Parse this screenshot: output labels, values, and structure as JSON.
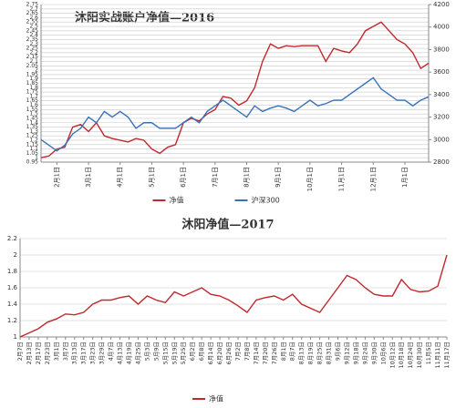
{
  "chart_data": [
    {
      "type": "line",
      "title": "沐阳实战账户净值—2016",
      "categories": [
        null,
        null,
        "2月1日",
        null,
        null,
        null,
        "3月1日",
        null,
        null,
        null,
        "4月1日",
        null,
        null,
        null,
        "5月1日",
        null,
        null,
        null,
        "6月1日",
        null,
        null,
        null,
        "7月1日",
        null,
        null,
        null,
        "8月1日",
        null,
        null,
        null,
        "9月1日",
        null,
        null,
        null,
        "10月1日",
        null,
        null,
        null,
        "11月1日",
        null,
        null,
        null,
        "12月1日",
        null,
        null,
        null,
        "1月1日",
        null,
        null,
        null
      ],
      "series": [
        {
          "name": "净值",
          "color": "#c0282d",
          "values": [
            1.0,
            1.02,
            1.1,
            1.12,
            1.35,
            1.38,
            1.3,
            1.4,
            1.25,
            1.22,
            1.2,
            1.18,
            1.22,
            1.2,
            1.1,
            1.05,
            1.12,
            1.15,
            1.4,
            1.45,
            1.42,
            1.5,
            1.55,
            1.7,
            1.68,
            1.6,
            1.65,
            1.8,
            2.1,
            2.3,
            2.25,
            2.28,
            2.27,
            2.28,
            2.28,
            2.28,
            2.1,
            2.25,
            2.22,
            2.2,
            2.3,
            2.45,
            2.5,
            2.55,
            2.45,
            2.35,
            2.3,
            2.2,
            2.02,
            2.08
          ]
        },
        {
          "name": "沪深300",
          "color": "#3a72b8",
          "axis": "y2",
          "values": [
            3000,
            2950,
            2900,
            2950,
            3050,
            3100,
            3200,
            3150,
            3250,
            3200,
            3250,
            3200,
            3100,
            3150,
            3150,
            3100,
            3100,
            3100,
            3150,
            3200,
            3150,
            3250,
            3300,
            3350,
            3300,
            3250,
            3200,
            3300,
            3250,
            3280,
            3300,
            3280,
            3250,
            3300,
            3350,
            3300,
            3320,
            3350,
            3350,
            3400,
            3450,
            3500,
            3550,
            3450,
            3400,
            3350,
            3350,
            3300,
            3350,
            3380
          ]
        }
      ],
      "ylim": [
        0.95,
        2.75
      ],
      "yticks": [
        0.95,
        1,
        1.05,
        1.1,
        1.15,
        1.2,
        1.25,
        1.3,
        1.35,
        1.4,
        1.45,
        1.5,
        1.55,
        1.6,
        1.65,
        1.7,
        1.75,
        1.8,
        1.85,
        1.9,
        1.95,
        2,
        2.05,
        2.1,
        2.15,
        2.2,
        2.25,
        2.3,
        2.35,
        2.4,
        2.45,
        2.5,
        2.55,
        2.6,
        2.65,
        2.7,
        2.75
      ],
      "y2lim": [
        2800,
        4200
      ],
      "y2ticks": [
        2800,
        3000,
        3200,
        3400,
        3600,
        3800,
        4000,
        4200
      ],
      "grid": true,
      "legend": "bottom"
    },
    {
      "type": "line",
      "title": "沐阳净值—2017",
      "categories": [
        "2月7日",
        "2月13日",
        "2月17日",
        "2月23日",
        "3月1日",
        "3月7日",
        "3月13日",
        "3月17日",
        "3月23日",
        "3月29日",
        "4月7日",
        "4月13日",
        "4月19日",
        "4月25日",
        "5月3日",
        "5月9日",
        "5月15日",
        "5月19日",
        "5月25日",
        "6月2日",
        "6月8日",
        "6月14日",
        "6月20日",
        "6月26日",
        "7月2日",
        "7月8日",
        "7月14日",
        "7月20日",
        "7月26日",
        "8月1日",
        "8月7日",
        "8月13日",
        "8月19日",
        "8月25日",
        "8月31日",
        "9月6日",
        "9月12日",
        "9月18日",
        "9月24日",
        "9月30日",
        "10月6日",
        "10月12日",
        "10月18日",
        "10月24日",
        "10月30日",
        "11月5日",
        "11月11日",
        "11月17日"
      ],
      "series": [
        {
          "name": "净值",
          "color": "#c0282d",
          "values": [
            1.0,
            1.05,
            1.1,
            1.18,
            1.22,
            1.28,
            1.27,
            1.3,
            1.4,
            1.45,
            1.45,
            1.48,
            1.5,
            1.4,
            1.5,
            1.45,
            1.42,
            1.55,
            1.5,
            1.55,
            1.6,
            1.52,
            1.5,
            1.45,
            1.38,
            1.3,
            1.45,
            1.48,
            1.5,
            1.45,
            1.52,
            1.4,
            1.35,
            1.3,
            1.45,
            1.6,
            1.75,
            1.7,
            1.6,
            1.52,
            1.5,
            1.5,
            1.7,
            1.58,
            1.55,
            1.56,
            1.62,
            2.0
          ]
        }
      ],
      "ylim": [
        1,
        2.2
      ],
      "yticks": [
        1,
        1.2,
        1.4,
        1.6,
        1.8,
        2,
        2.2
      ],
      "grid": true,
      "legend": "bottom"
    }
  ]
}
